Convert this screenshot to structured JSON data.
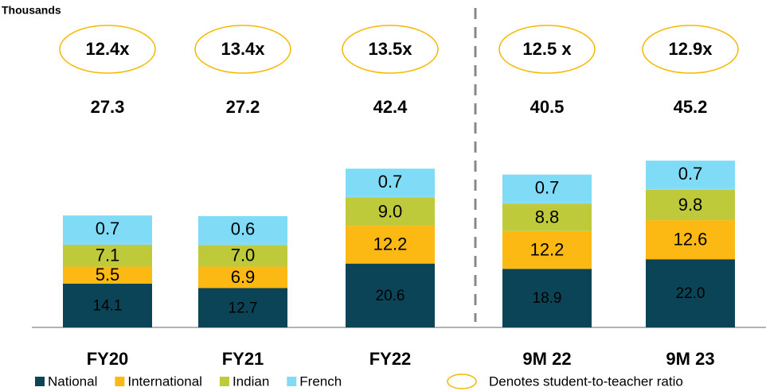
{
  "chart_data": {
    "type": "stacked_bar",
    "unit_label": "Thousands",
    "categories": [
      "FY20",
      "FY21",
      "FY22",
      "9M 22",
      "9M 23"
    ],
    "series": [
      {
        "name": "National",
        "color": "#0b4457",
        "values": [
          14.1,
          12.7,
          20.6,
          18.9,
          22.0
        ],
        "value_labels": [
          "14.1",
          "12.7",
          "20.6",
          "18.9",
          "22.0"
        ]
      },
      {
        "name": "International",
        "color": "#fdb913",
        "values": [
          5.5,
          6.9,
          12.2,
          12.2,
          12.6
        ]
      },
      {
        "name": "Indian",
        "color": "#bfca3b",
        "values": [
          7.1,
          7.0,
          9.0,
          8.8,
          9.8
        ],
        "value_labels": [
          "7.1",
          "7.0",
          "9.0",
          "8.8",
          "9.8"
        ]
      },
      {
        "name": "French",
        "color": "#80dbf7",
        "values": [
          0.7,
          0.6,
          0.7,
          0.7,
          0.7
        ]
      }
    ],
    "totals": [
      27.3,
      27.2,
      42.4,
      40.5,
      45.2
    ],
    "ratios": [
      "12.4x",
      "13.4x",
      "13.5x",
      "12.5  x",
      "12.9x"
    ],
    "ratio_note": "Denotes student-to-teacher ratio"
  }
}
